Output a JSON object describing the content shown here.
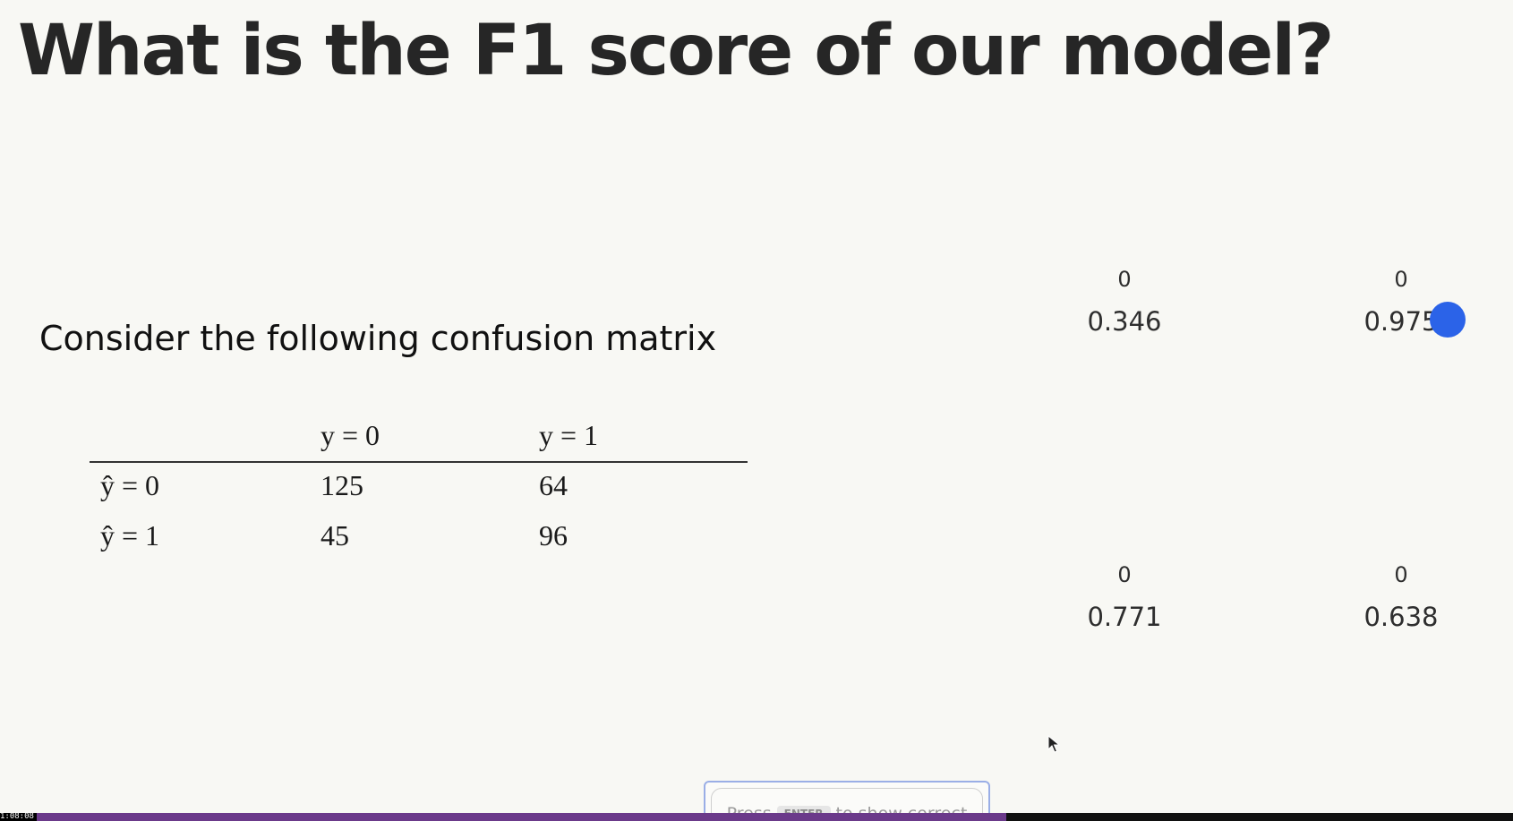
{
  "slide": {
    "title": "What is the F1 score of our model?",
    "subtitle": "Consider the following confusion matrix"
  },
  "matrix": {
    "headers": [
      "",
      "y = 0",
      "y = 1"
    ],
    "rows": [
      [
        "ŷ = 0",
        "125",
        "64"
      ],
      [
        "ŷ = 1",
        "45",
        "96"
      ]
    ]
  },
  "options": [
    {
      "count": "0",
      "value": "0.346"
    },
    {
      "count": "0",
      "value": "0.975"
    },
    {
      "count": "0",
      "value": "0.771"
    },
    {
      "count": "0",
      "value": "0.638"
    }
  ],
  "prompt": {
    "before": "Press",
    "key": "ENTER",
    "after": "to show correct"
  },
  "player": {
    "time": "1:08:08",
    "progress": 0.665
  },
  "colors": {
    "pointer": "#2b63e8",
    "progress": "#6b3a8a",
    "background": "#f8f8f4"
  }
}
